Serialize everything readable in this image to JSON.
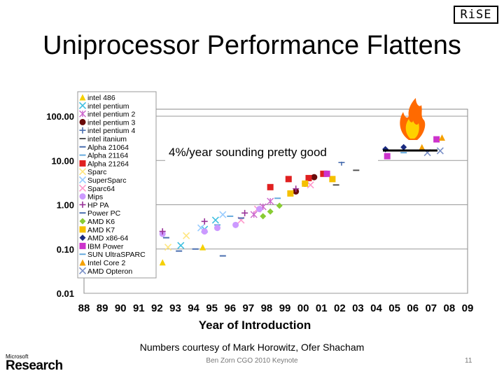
{
  "slide": {
    "logo_text": "RiSE",
    "title": "Uniprocessor Performance Flattens",
    "credit": "Numbers courtesy of Mark Horowitz, Ofer Shacham",
    "footer_center": "Ben Zorn CGO 2010 Keynote",
    "page_number": "11",
    "ms_small": "Microsoft",
    "ms_big": "Research"
  },
  "chart_data": {
    "type": "scatter",
    "xlabel": "Year of Introduction",
    "ylabel": "",
    "x_ticks": [
      "88",
      "89",
      "90",
      "91",
      "92",
      "93",
      "94",
      "95",
      "96",
      "97",
      "98",
      "99",
      "00",
      "01",
      "02",
      "03",
      "04",
      "05",
      "06",
      "07",
      "08",
      "09"
    ],
    "y_ticks": [
      "0.01",
      "0.10",
      "1.00",
      "10.00",
      "100.00"
    ],
    "y_scale": "log",
    "xlim": [
      1988,
      2009
    ],
    "ylim": [
      0.01,
      100
    ],
    "grid": "horizontal",
    "legend_position": "left",
    "annotation": "4%/year sounding pretty good",
    "series": [
      {
        "name": "intel 486",
        "color": "#f5d000",
        "marker": "triangle",
        "x": [
          1992.3,
          1994.5
        ],
        "y": [
          0.05,
          0.11
        ]
      },
      {
        "name": "intel pentium",
        "color": "#40c0e0",
        "marker": "x",
        "x": [
          1993.3,
          1994.6,
          1995.2
        ],
        "y": [
          0.12,
          0.28,
          0.45
        ]
      },
      {
        "name": "intel pentium 2",
        "color": "#cc66cc",
        "marker": "star",
        "x": [
          1997.3,
          1997.8,
          1998.2
        ],
        "y": [
          0.6,
          0.9,
          1.2
        ]
      },
      {
        "name": "intel pentium 3",
        "color": "#6a0a0a",
        "marker": "circle",
        "x": [
          1999.6,
          2000.1,
          2000.6
        ],
        "y": [
          2.0,
          3.0,
          4.2
        ]
      },
      {
        "name": "intel pentium 4",
        "color": "#4a6fb0",
        "marker": "plus",
        "x": [
          2001.3,
          2002.1,
          2002.6
        ],
        "y": [
          5.0,
          9.0,
          12.0
        ]
      },
      {
        "name": "intel itanium",
        "color": "#555555",
        "marker": "dash",
        "x": [
          2001.8,
          2002.9
        ],
        "y": [
          2.8,
          6.0
        ]
      },
      {
        "name": "Alpha 21064",
        "color": "#4a6fb0",
        "marker": "dash",
        "x": [
          1992.5,
          1993.2
        ],
        "y": [
          0.18,
          0.09
        ]
      },
      {
        "name": "Alpha 21164",
        "color": "#66aadd",
        "marker": "dash",
        "x": [
          1995.3,
          1996.0
        ],
        "y": [
          0.35,
          0.55
        ]
      },
      {
        "name": "Alpha 21264",
        "color": "#e02020",
        "marker": "square",
        "x": [
          1998.2,
          1999.2,
          2000.3,
          2001.1
        ],
        "y": [
          2.5,
          3.8,
          4.0,
          5.0
        ]
      },
      {
        "name": "Sparc",
        "color": "#ffe680",
        "marker": "x",
        "x": [
          1992.6,
          1993.6
        ],
        "y": [
          0.11,
          0.2
        ]
      },
      {
        "name": "SuperSparc",
        "color": "#99ccff",
        "marker": "x",
        "x": [
          1994.4,
          1995.6
        ],
        "y": [
          0.3,
          0.6
        ]
      },
      {
        "name": "Sparc64",
        "color": "#ff99cc",
        "marker": "x",
        "x": [
          1996.6,
          1997.5,
          2000.4
        ],
        "y": [
          0.45,
          0.8,
          2.8
        ]
      },
      {
        "name": "Mips",
        "color": "#cc99ff",
        "marker": "circle",
        "x": [
          1992.3,
          1994.6,
          1995.3,
          1996.3,
          1997.6
        ],
        "y": [
          0.22,
          0.25,
          0.3,
          0.35,
          0.8
        ]
      },
      {
        "name": "HP PA",
        "color": "#993399",
        "marker": "plus",
        "x": [
          1992.3,
          1994.6,
          1996.8,
          1999.6
        ],
        "y": [
          0.25,
          0.42,
          0.65,
          2.3
        ]
      },
      {
        "name": "Power PC",
        "color": "#4a6fb0",
        "marker": "dash",
        "x": [
          1994.1,
          1995.6,
          1996.6
        ],
        "y": [
          0.1,
          0.07,
          0.5
        ]
      },
      {
        "name": "AMD K6",
        "color": "#88cc33",
        "marker": "diamond",
        "x": [
          1997.8,
          1998.2,
          1998.7
        ],
        "y": [
          0.55,
          0.7,
          0.95
        ]
      },
      {
        "name": "AMD K7",
        "color": "#f5c000",
        "marker": "square",
        "x": [
          1999.3,
          2000.1,
          2001.6
        ],
        "y": [
          1.8,
          3.0,
          3.8
        ]
      },
      {
        "name": "AMD x86-64",
        "color": "#1a2a80",
        "marker": "diamond",
        "x": [
          2003.0,
          2004.5,
          2005.5
        ],
        "y": [
          13.0,
          18.0,
          20.0
        ]
      },
      {
        "name": "IBM Power",
        "color": "#cc33cc",
        "marker": "square",
        "x": [
          2001.3,
          2004.6,
          2007.3
        ],
        "y": [
          5.0,
          12.5,
          30.0
        ]
      },
      {
        "name": "SUN UltraSPARC",
        "color": "#66aadd",
        "marker": "dash",
        "x": [
          1998.6,
          2003.6,
          2005.5
        ],
        "y": [
          1.4,
          14.0,
          15.0
        ]
      },
      {
        "name": "Intel Core 2",
        "color": "#f5a000",
        "marker": "triangle",
        "x": [
          2006.5,
          2007.6
        ],
        "y": [
          20.0,
          33.0
        ]
      },
      {
        "name": "AMD Opteron",
        "color": "#7a90c8",
        "marker": "x",
        "x": [
          2006.8,
          2007.5
        ],
        "y": [
          15.0,
          16.5
        ]
      }
    ]
  }
}
